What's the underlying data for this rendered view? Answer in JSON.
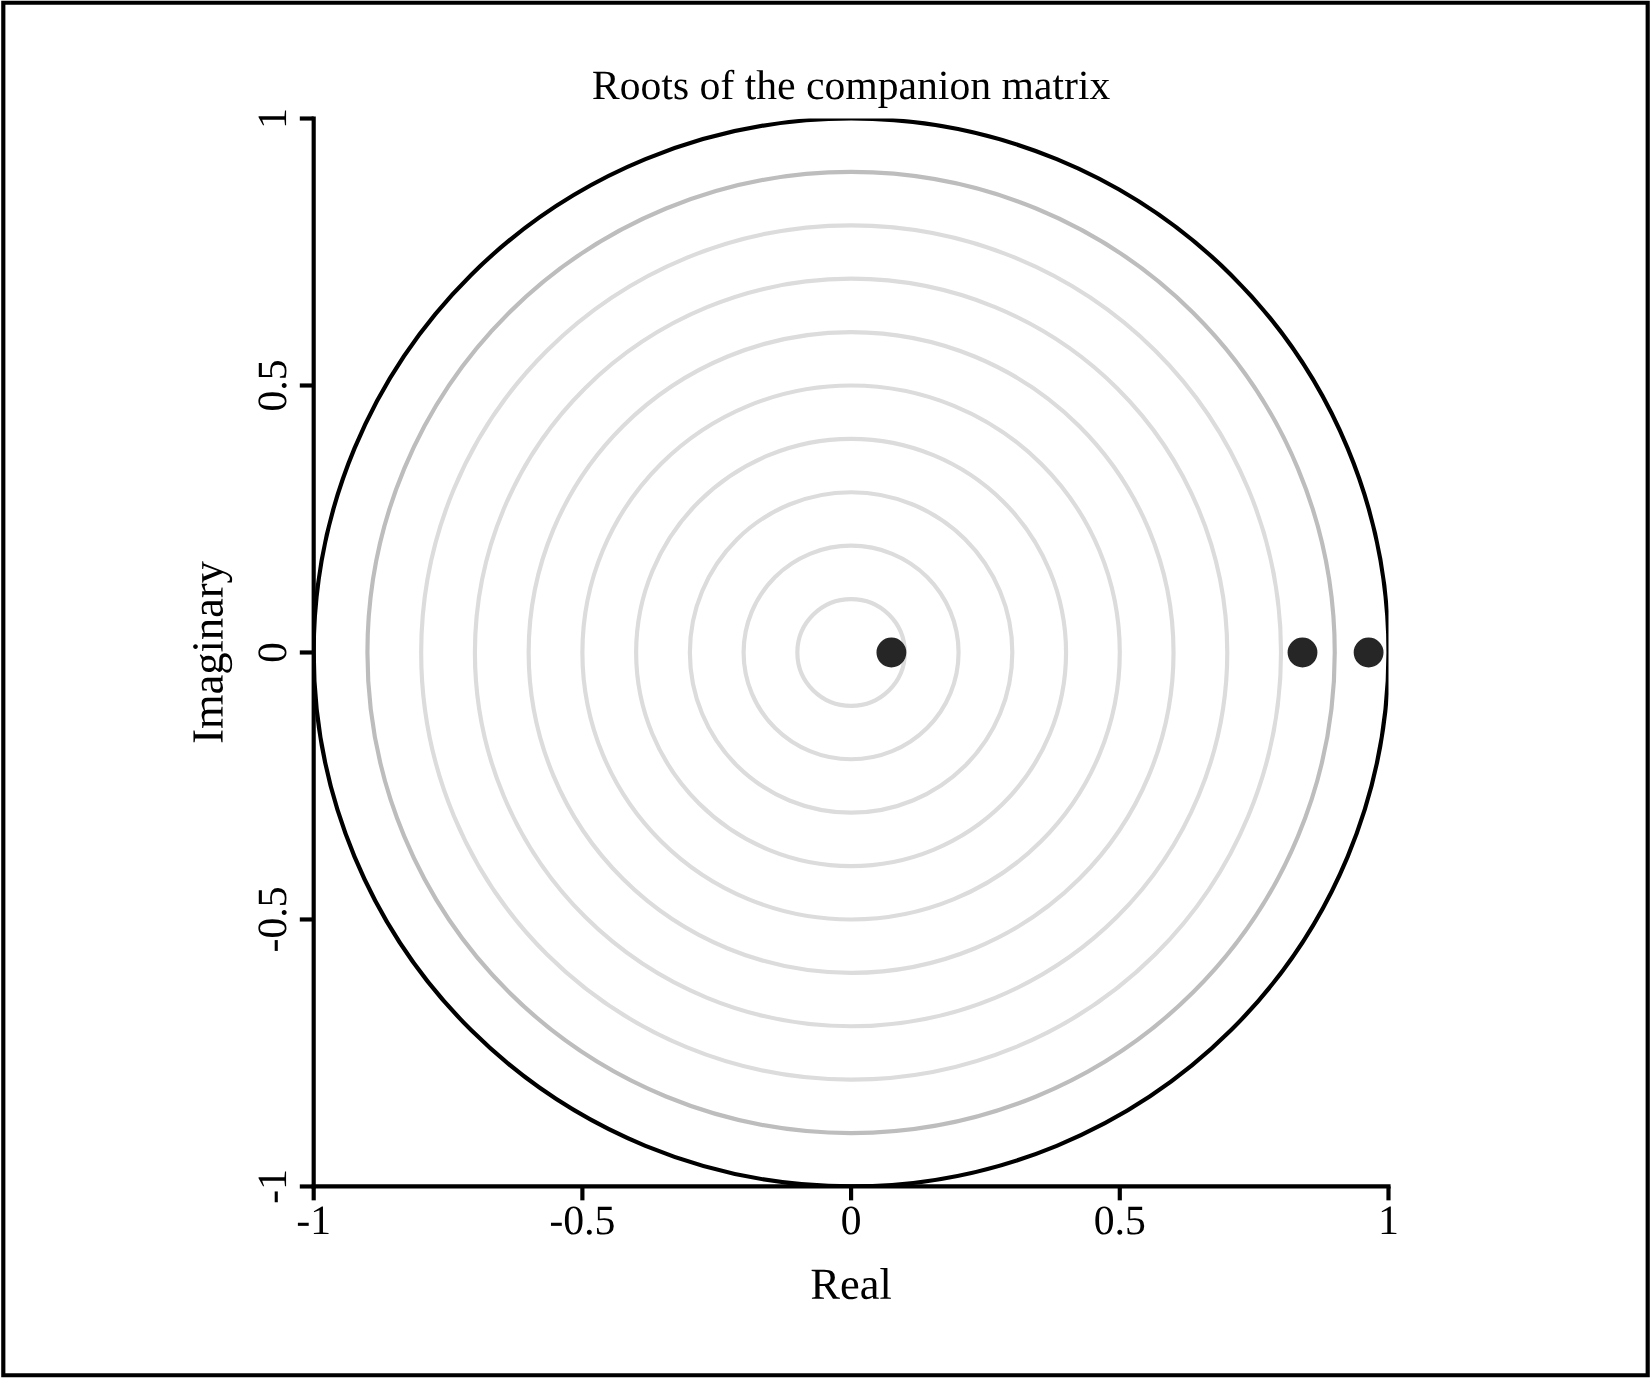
{
  "chart_data": {
    "type": "scatter",
    "title": "Roots of the companion matrix",
    "xlabel": "Real",
    "ylabel": "Imaginary",
    "x": [
      0.075,
      0.84,
      0.963
    ],
    "series": [
      {
        "color": "#262626",
        "values": [
          0,
          0,
          0
        ]
      }
    ],
    "marker": "circle",
    "xlim": [
      -1,
      1
    ],
    "ylim": [
      -1,
      1
    ],
    "xticks": [
      -1,
      -0.5,
      0,
      0.5,
      1
    ],
    "yticks": [
      -1,
      -0.5,
      0,
      0.5,
      1
    ],
    "grid": false,
    "legend": false
  }
}
